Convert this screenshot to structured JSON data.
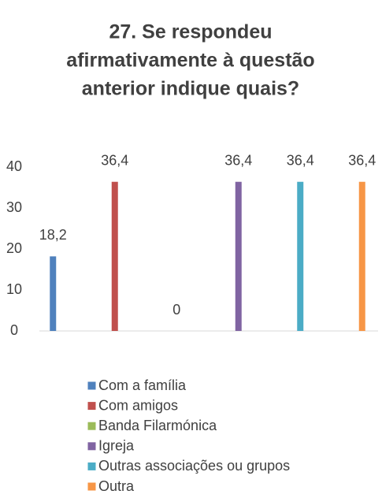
{
  "chart_data": {
    "type": "bar",
    "title": [
      "27. Se respondeu",
      "afirmativamente à questão",
      "anterior indique quais?"
    ],
    "categories": [
      "Com a família",
      "Com amigos",
      "Banda Filarmónica",
      "Igreja",
      "Outras associações ou grupos",
      "Outra"
    ],
    "values": [
      18.2,
      36.4,
      0,
      36.4,
      36.4,
      36.4
    ],
    "value_labels": [
      "18,2",
      "36,4",
      "0",
      "36,4",
      "36,4",
      "36,4"
    ],
    "colors": [
      "#4f81bd",
      "#c0504d",
      "#9bbb59",
      "#8064a2",
      "#4bacc6",
      "#f79646"
    ],
    "ylim": [
      0,
      40
    ],
    "yticks": [
      0,
      10,
      20,
      30,
      40
    ],
    "grid": false,
    "legend": "bottom"
  }
}
